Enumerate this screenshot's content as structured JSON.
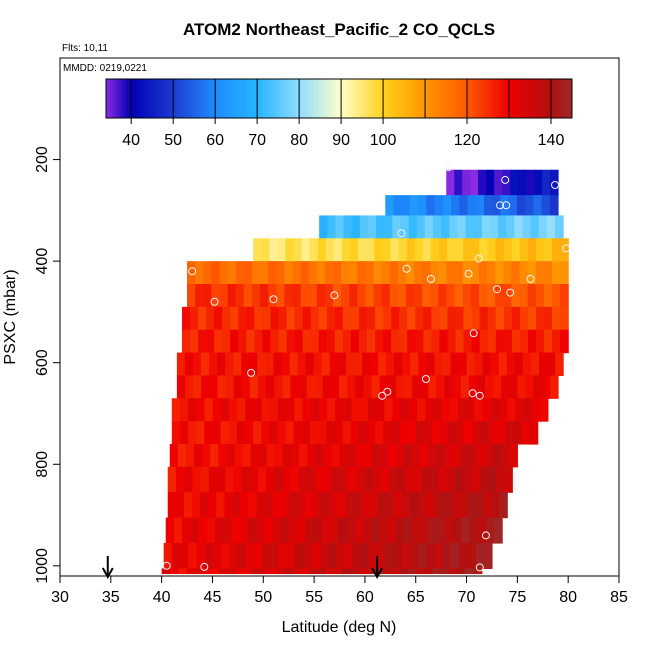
{
  "chart_data": {
    "type": "heatmap",
    "title": "ATOM2 Northeast_Pacific_2 CO_QCLS",
    "flights_label": "Flts: 10,11",
    "dates_label": "MMDD: 0219,0221",
    "xlabel": "Latitude (deg N)",
    "ylabel": "PSXC (mbar)",
    "xlim": [
      30,
      85
    ],
    "ylim": [
      1020,
      0
    ],
    "x_ticks": [
      30,
      35,
      40,
      45,
      50,
      55,
      60,
      65,
      70,
      75,
      80,
      85
    ],
    "y_ticks": [
      200,
      400,
      600,
      800,
      1000
    ],
    "colorbar": {
      "min": 34,
      "max": 145,
      "ticks": [
        40,
        50,
        60,
        70,
        80,
        90,
        100,
        120,
        140
      ],
      "dividers": [
        40,
        50,
        60,
        70,
        80,
        90,
        100,
        110,
        120,
        130,
        140
      ],
      "stops": [
        {
          "v": 34,
          "c": "#8a2be2"
        },
        {
          "v": 40,
          "c": "#0000b4"
        },
        {
          "v": 50,
          "c": "#1d3bd0"
        },
        {
          "v": 60,
          "c": "#1e8cff"
        },
        {
          "v": 70,
          "c": "#27b4ff"
        },
        {
          "v": 80,
          "c": "#8fdcff"
        },
        {
          "v": 90,
          "c": "#ffffc8"
        },
        {
          "v": 100,
          "c": "#ffd21e"
        },
        {
          "v": 110,
          "c": "#ff9600"
        },
        {
          "v": 120,
          "c": "#ff5a00"
        },
        {
          "v": 130,
          "c": "#ee0000"
        },
        {
          "v": 140,
          "c": "#b01010"
        },
        {
          "v": 145,
          "c": "#a02828"
        }
      ]
    },
    "layers": [
      {
        "p_top": 220,
        "p_bot": 270,
        "lat_min": 68,
        "lat_max": 79,
        "v_start": 34,
        "v_end": 44
      },
      {
        "p_top": 270,
        "p_bot": 310,
        "lat_min": 62,
        "lat_max": 79,
        "v_start": 62,
        "v_end": 52
      },
      {
        "p_top": 310,
        "p_bot": 355,
        "lat_min": 55.5,
        "lat_max": 79.5,
        "v_start": 72,
        "v_end": 78
      },
      {
        "p_top": 355,
        "p_bot": 400,
        "lat_min": 49,
        "lat_max": 80,
        "v_start": 95,
        "v_end": 104
      },
      {
        "p_top": 400,
        "p_bot": 445,
        "lat_min": 42.5,
        "lat_max": 80,
        "v_start": 118,
        "v_end": 112
      },
      {
        "p_top": 445,
        "p_bot": 490,
        "lat_min": 42.5,
        "lat_max": 80,
        "v_start": 125,
        "v_end": 120
      },
      {
        "p_top": 490,
        "p_bot": 535,
        "lat_min": 42,
        "lat_max": 80,
        "v_start": 126,
        "v_end": 124
      },
      {
        "p_top": 535,
        "p_bot": 580,
        "lat_min": 42,
        "lat_max": 80,
        "v_start": 127,
        "v_end": 127
      },
      {
        "p_top": 580,
        "p_bot": 625,
        "lat_min": 41.5,
        "lat_max": 79.5,
        "v_start": 128,
        "v_end": 129
      },
      {
        "p_top": 625,
        "p_bot": 670,
        "lat_min": 41.5,
        "lat_max": 79,
        "v_start": 128,
        "v_end": 130
      },
      {
        "p_top": 670,
        "p_bot": 715,
        "lat_min": 41,
        "lat_max": 78,
        "v_start": 129,
        "v_end": 132
      },
      {
        "p_top": 715,
        "p_bot": 760,
        "lat_min": 41,
        "lat_max": 77,
        "v_start": 128,
        "v_end": 134
      },
      {
        "p_top": 760,
        "p_bot": 805,
        "lat_min": 40.8,
        "lat_max": 75,
        "v_start": 128,
        "v_end": 136
      },
      {
        "p_top": 805,
        "p_bot": 855,
        "lat_min": 40.6,
        "lat_max": 74.5,
        "v_start": 129,
        "v_end": 138
      },
      {
        "p_top": 855,
        "p_bot": 905,
        "lat_min": 40.6,
        "lat_max": 74,
        "v_start": 129,
        "v_end": 140
      },
      {
        "p_top": 905,
        "p_bot": 955,
        "lat_min": 40.4,
        "lat_max": 73.5,
        "v_start": 130,
        "v_end": 142
      },
      {
        "p_top": 955,
        "p_bot": 1005,
        "lat_min": 40.2,
        "lat_max": 72.5,
        "v_start": 130,
        "v_end": 142
      },
      {
        "p_top": 1005,
        "p_bot": 1015,
        "lat_min": 40,
        "lat_max": 71.5,
        "v_start": 130,
        "v_end": 142
      }
    ],
    "points": [
      {
        "lat": 68.2,
        "p": 215
      },
      {
        "lat": 73.8,
        "p": 240
      },
      {
        "lat": 78.7,
        "p": 250
      },
      {
        "lat": 73.3,
        "p": 290
      },
      {
        "lat": 73.9,
        "p": 290
      },
      {
        "lat": 63.6,
        "p": 345
      },
      {
        "lat": 79.8,
        "p": 375
      },
      {
        "lat": 71.2,
        "p": 395
      },
      {
        "lat": 43.0,
        "p": 420
      },
      {
        "lat": 64.1,
        "p": 415
      },
      {
        "lat": 70.2,
        "p": 425
      },
      {
        "lat": 66.5,
        "p": 435
      },
      {
        "lat": 76.3,
        "p": 435
      },
      {
        "lat": 73.0,
        "p": 455
      },
      {
        "lat": 74.3,
        "p": 462
      },
      {
        "lat": 57.0,
        "p": 467
      },
      {
        "lat": 51.0,
        "p": 475
      },
      {
        "lat": 45.2,
        "p": 480
      },
      {
        "lat": 70.7,
        "p": 542
      },
      {
        "lat": 80.2,
        "p": 608
      },
      {
        "lat": 48.8,
        "p": 620
      },
      {
        "lat": 66.0,
        "p": 632
      },
      {
        "lat": 62.2,
        "p": 657
      },
      {
        "lat": 61.7,
        "p": 665
      },
      {
        "lat": 70.6,
        "p": 660
      },
      {
        "lat": 71.3,
        "p": 665
      },
      {
        "lat": 71.9,
        "p": 940
      },
      {
        "lat": 40.5,
        "p": 1000
      },
      {
        "lat": 44.2,
        "p": 1002
      },
      {
        "lat": 71.3,
        "p": 1003
      }
    ],
    "arrows": [
      34.7,
      61.2
    ]
  }
}
